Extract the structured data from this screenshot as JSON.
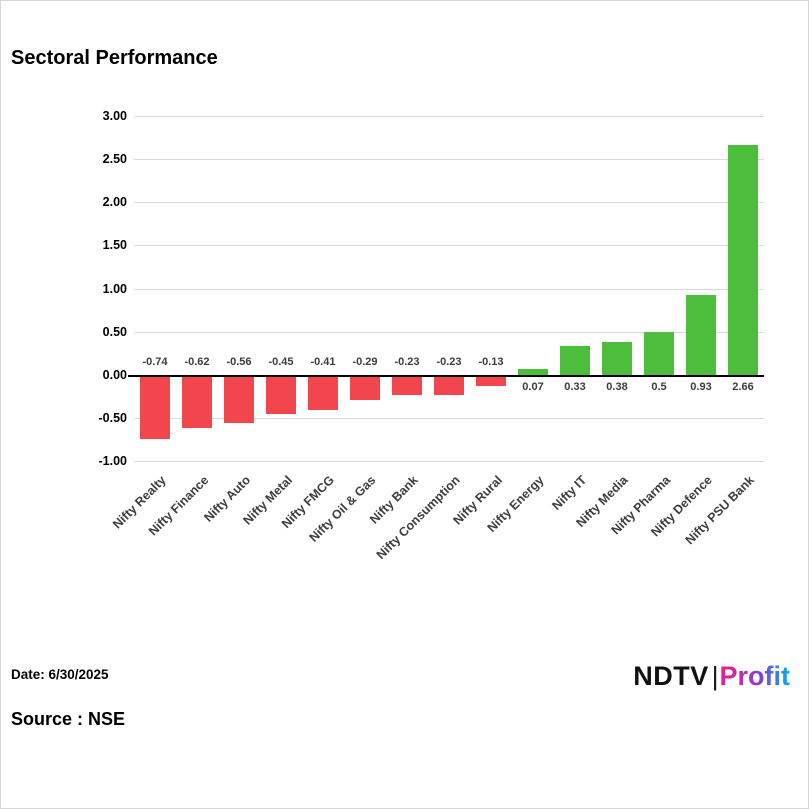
{
  "page": {
    "title": "Sectoral Performance",
    "footer": {
      "date_label": "Date: 6/30/2025",
      "source_label": "Source : NSE"
    },
    "logo": {
      "ndtv": "NDTV",
      "separator": "|",
      "profit": "Profit"
    }
  },
  "chart_data": {
    "type": "bar",
    "title": "Sectoral Performance",
    "xlabel": "",
    "ylabel": "",
    "ylim": [
      -1.0,
      3.0
    ],
    "ytick_step": 0.5,
    "yticks": [
      "3.00",
      "2.50",
      "2.00",
      "1.50",
      "1.00",
      "0.50",
      "0.00",
      "-0.50",
      "-1.00"
    ],
    "grid": "horizontal",
    "legend": "none",
    "categories": [
      "Nifty Realty",
      "Nifty Finance",
      "Nifty Auto",
      "Nifty Metal",
      "Nifty FMCG",
      "Nifty Oil & Gas",
      "Nifty Bank",
      "Nifty Consumption",
      "Nifty Rural",
      "Nifty Energy",
      "Nifty IT",
      "Nifty Media",
      "Nifty Pharma",
      "Nifty Defence",
      "Nifty PSU Bank"
    ],
    "values": [
      -0.74,
      -0.62,
      -0.56,
      -0.45,
      -0.41,
      -0.29,
      -0.23,
      -0.23,
      -0.13,
      0.07,
      0.33,
      0.38,
      0.5,
      0.93,
      2.66
    ],
    "value_labels": [
      "-0.74",
      "-0.62",
      "-0.56",
      "-0.45",
      "-0.41",
      "-0.29",
      "-0.23",
      "-0.23",
      "-0.13",
      "0.07",
      "0.33",
      "0.38",
      "0.5",
      "0.93",
      "2.66"
    ],
    "colors": {
      "positive": "#4DBE3C",
      "negative": "#F2464E",
      "gridline": "#d9d9d9",
      "zero_line": "#000000"
    }
  }
}
